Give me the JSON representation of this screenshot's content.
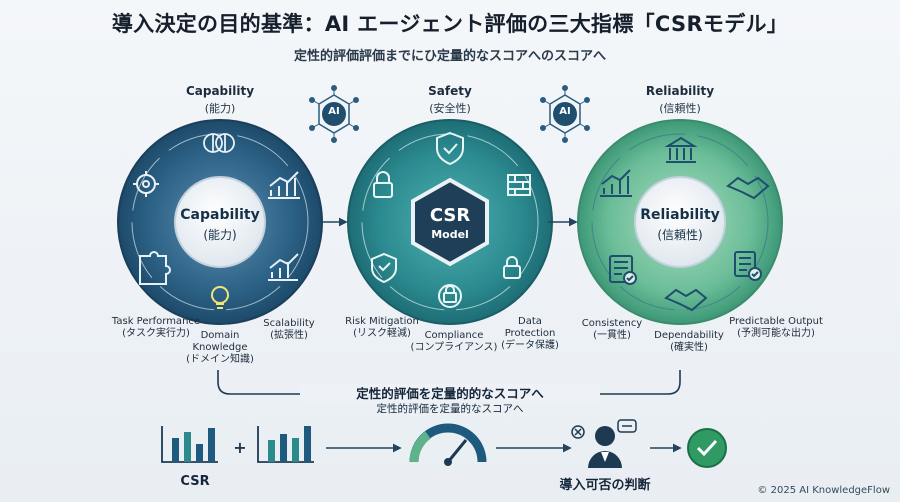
{
  "header": {
    "title": "導入決定の目的基準：AI エージェント評価の三大指標「CSRモデル」",
    "subtitle": "定性的評価評価までにひ定量的なスコアへのスコアへ"
  },
  "capability": {
    "title": "Capability",
    "title_jp": "(能力)",
    "center_title": "Capability",
    "center_sub": "(能力)",
    "labels": [
      {
        "en": "Task Performance",
        "jp": "(タスク実行力)"
      },
      {
        "en": "Domain Knowledge",
        "jp": "(ドメイン知識)"
      },
      {
        "en": "Scalability",
        "jp": "(拡張性)"
      }
    ]
  },
  "safety": {
    "title": "Safety",
    "title_jp": "(安全性)",
    "center_title": "CSR",
    "center_sub": "Model",
    "labels": [
      {
        "en": "Risk Mitigation",
        "jp": "(リスク軽減)"
      },
      {
        "en": "Compliance",
        "jp": "(コンプライアンス)"
      },
      {
        "en": "Data Protection",
        "jp": "(データ保護)"
      }
    ]
  },
  "reliability": {
    "title": "Reliability",
    "title_jp": "(信頼性)",
    "center_title": "Reliability",
    "center_sub": "(信頼性)",
    "labels": [
      {
        "en": "Consistency",
        "jp": "(一貫性)"
      },
      {
        "en": "Dependability",
        "jp": "(確実性)"
      },
      {
        "en": "Predictable Output",
        "jp": "(予測可能な出力)"
      }
    ]
  },
  "ai_badge": "AI",
  "flow": {
    "text": "定性的評価を定量的的なスコアへ",
    "sub": "定性的評価を定量的なスコアへ"
  },
  "bottom": {
    "left_label": "CSR",
    "plus": "+",
    "right_label": "導入可否の判断"
  },
  "footer": {
    "copyright": "© 2025 AI KnowledgeFlow"
  },
  "colors": {
    "navy": "#1f4e6e",
    "teal": "#2a8a8c",
    "green": "#5fb38a",
    "text": "#1c2b3a"
  }
}
